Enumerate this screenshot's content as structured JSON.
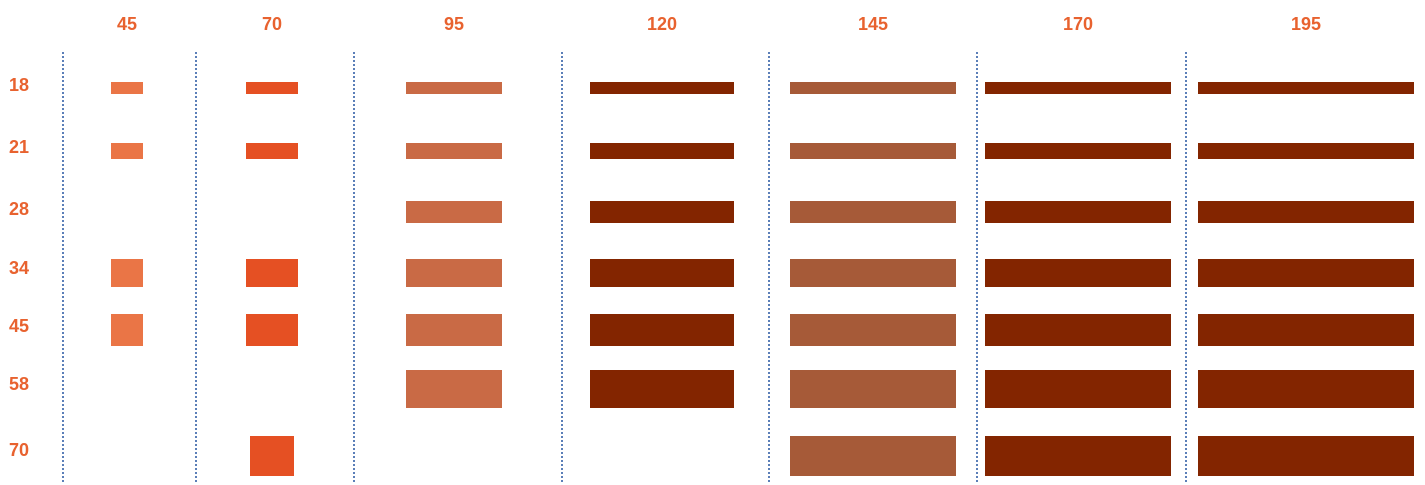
{
  "columns": [
    {
      "label": "45"
    },
    {
      "label": "70"
    },
    {
      "label": "95"
    },
    {
      "label": "120"
    },
    {
      "label": "145"
    },
    {
      "label": "170"
    },
    {
      "label": "195"
    }
  ],
  "rows": [
    {
      "label": "18"
    },
    {
      "label": "21"
    },
    {
      "label": "28"
    },
    {
      "label": "34"
    },
    {
      "label": "45"
    },
    {
      "label": "58"
    },
    {
      "label": "70"
    }
  ],
  "colors": {
    "label": "#E8622F",
    "divider": "#5b7fb8",
    "block_by_column": [
      "#EA7546",
      "#E55023",
      "#C96A45",
      "#832500",
      "#A65A38",
      "#832500",
      "#832500"
    ]
  },
  "chart_data": {
    "type": "table",
    "columns": [
      "45",
      "70",
      "95",
      "120",
      "145",
      "170",
      "195"
    ],
    "rows": [
      "18",
      "21",
      "28",
      "34",
      "45",
      "58",
      "70"
    ],
    "cells_present": [
      [
        1,
        1,
        1,
        1,
        1,
        1,
        1
      ],
      [
        1,
        1,
        1,
        1,
        1,
        1,
        1
      ],
      [
        0,
        0,
        1,
        1,
        1,
        1,
        1
      ],
      [
        1,
        1,
        1,
        1,
        1,
        1,
        1
      ],
      [
        1,
        1,
        1,
        1,
        1,
        1,
        1
      ],
      [
        0,
        0,
        1,
        1,
        1,
        1,
        1
      ],
      [
        0,
        1,
        0,
        0,
        1,
        1,
        1
      ]
    ]
  }
}
